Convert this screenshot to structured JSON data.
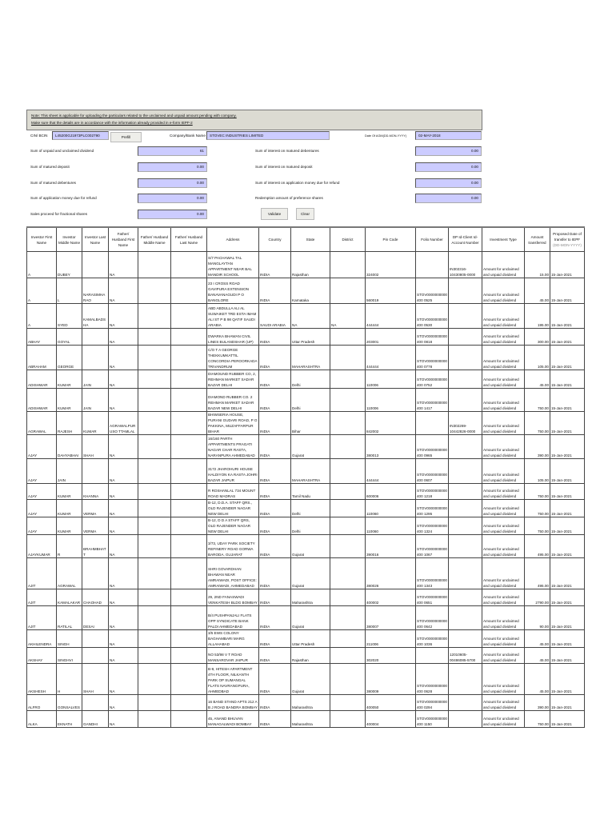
{
  "note": {
    "line1": "Note: This sheet is applicable for uploading the particulars related to the unclaimed and unpaid amount pending with company.",
    "line2": "Make sure that the details are in accordance with the information already provided in e-form IEPF-2"
  },
  "form": {
    "cin_label": "CIN/ BCIN",
    "cin_value": "L45200GJ1973PLC002790",
    "prefill_label": "Prefill",
    "company_label": "Company/Bank Name",
    "company_value": "STOVEC INDUSTRIES LIMITED",
    "agm_label": "Date Of AGM(DD-MON-YYYY)",
    "agm_value": "02-MAY-2018",
    "left_fields": [
      {
        "label": "Sum of unpaid and unclaimed dividend",
        "value": "61"
      },
      {
        "label": "Sum of matured deposit",
        "value": "0.00"
      },
      {
        "label": "Sum of matured debentures",
        "value": "0.00"
      },
      {
        "label": "Sum of application money due for refund",
        "value": "0.00"
      },
      {
        "label": "Sales proceed for fractional shares",
        "value": "0.00"
      }
    ],
    "right_fields": [
      {
        "label": "Sum of interest on matured debentures",
        "value": "0.00"
      },
      {
        "label": "Sum of interest on matured deposit",
        "value": "0.00"
      },
      {
        "label": "Sum of interest on application money due for refund",
        "value": "0.00"
      },
      {
        "label": "Redemption amount of preference shares",
        "value": "0.00"
      }
    ],
    "validate_label": "Validate",
    "clear_label": "Clear"
  },
  "table": {
    "headers": [
      "Investor First Name",
      "Investor Middle Name",
      "Investor Last Name",
      "Father/ Husband First Name",
      "Father/ Husband Middle Name",
      "Father/ Husband Last Name",
      "Address",
      "Country",
      "State",
      "District",
      "Pin Code",
      "Folio Number",
      "DP Id-Client Id-Account Number",
      "Investment Type",
      "Amount transferred",
      "Proposed Date of transfer to IEPF"
    ],
    "date_hint": "(DD-MON-YYYY)",
    "rows": [
      [
        "A",
        "DUBEY",
        "",
        "NA",
        "",
        "",
        "S/7 PACHAWAL TAL MANGLAYTAN APPARTMENT NEAR BAL MANDIR SCHOOL",
        "INDIA",
        "Rajasthan",
        "",
        "324002",
        "",
        "IN302316-10430805-0000",
        "Amount for unclaimed and unpaid dividend",
        "15.00",
        "15-Jan-2021"
      ],
      [
        "A",
        "L",
        "NARASIMHARAO",
        "NA",
        "",
        "",
        "23 I CROSS ROAD GAVIPURA EXTENSION BANAVANAGUDI P O BANGLORE",
        "INDIA",
        "Karnataka",
        "",
        "560019",
        "STOV0000000000400 0525",
        "",
        "Amount for unclaimed and unpaid dividend",
        "45.00",
        "15-Jan-2021"
      ],
      [
        "A",
        "SYED",
        "KAMALBADSHA",
        "NA",
        "",
        "",
        "ABD ABDULLA ALI AL SUWAIKET TRD ESTA IMAM ALI ST P B 98 QATIF SAUDI ARABIA",
        "SAUDI ARABIA",
        "NA",
        "NA",
        "444444",
        "STOV0000000000400 0530",
        "",
        "Amount for unclaimed and unpaid dividend",
        "195.00",
        "15-Jan-2021"
      ],
      [
        "ABHAY",
        "GOYAL",
        "",
        "NA",
        "",
        "",
        "DWARKA BHAWAN CIVIL LINES BULANDSHAR (UP)",
        "INDIA",
        "Uttar Pradesh",
        "",
        "203001",
        "STOV0000000000400 0818",
        "",
        "Amount for unclaimed and unpaid dividend",
        "300.00",
        "15-Jan-2021"
      ],
      [
        "ABRAHAM",
        "GEORGE",
        "",
        "NA",
        "",
        "",
        "C/O T A GEORGE THEKKUMKATTIL CONCORDIA PEROORKADA TRIVANDRUM",
        "INDIA",
        "MAHARASHTRA",
        "",
        "444444",
        "STOV0000000000400 0778",
        "",
        "Amount for unclaimed and unpaid dividend",
        "105.00",
        "15-Jan-2021"
      ],
      [
        "ADISHWAR",
        "KUMAR",
        "JAIN",
        "NA",
        "",
        "",
        "DIAMOUND RUBBER CO, 2, REHMAN MARKET SADAR BAZAR DELHI",
        "INDIA",
        "Delhi",
        "",
        "110006",
        "STOV0000000000400 0752",
        "",
        "Amount for unclaimed and unpaid dividend",
        "45.00",
        "15-Jan-2021"
      ],
      [
        "ADISHWAR",
        "KUMAR",
        "JAIN",
        "NA",
        "",
        "",
        "DIAMOND RUBBER CO. 2 REHMAN MARKET SADAR BAZAR NEW DELHI",
        "INDIA",
        "Delhi",
        "",
        "110006",
        "STOV0000000000400 1417",
        "",
        "Amount for unclaimed and unpaid dividend",
        "750.00",
        "15-Jan-2021"
      ],
      [
        "AGRAWAL",
        "RAJESH",
        "KUMAR",
        "AGRAWALPURUSO TTAMLAL",
        "",
        "",
        "BHIWSERIA HOUSE, PURANI GUDARI ROAD, P O PAKKINA, MUZAFFARPUR BIHAR",
        "INDIA",
        "Bihar",
        "",
        "842002",
        "",
        "IN302269-10442826-0000",
        "Amount for unclaimed and unpaid dividend",
        "750.00",
        "15-Jan-2021"
      ],
      [
        "AJAY",
        "DAHYABHAI",
        "SHAH",
        "NA",
        "",
        "",
        "16/160 PARTH APPARTMENTS PRAGATI NAGAR CHAR RASTA, NARANPURA AHMEDABAD",
        "INDIA",
        "Gujarat",
        "",
        "380013",
        "STOV0000000000400 0965",
        "",
        "Amount for unclaimed and unpaid dividend",
        "390.00",
        "15-Jan-2021"
      ],
      [
        "AJAY",
        "JAIN",
        "",
        "NA",
        "",
        "",
        "3172 JHAROHURI HOUSE HALDIYON KA RASTA JOHRI BAZAR JAIPUR",
        "INDIA",
        "MAHARASHTRA",
        "",
        "444444",
        "STOV0000000000400 0607",
        "",
        "Amount for unclaimed and unpaid dividend",
        "105.00",
        "15-Jan-2021"
      ],
      [
        "AJAY",
        "KUMAR",
        "KHANNA",
        "NA",
        "",
        "",
        "R ROSHANLAL 734 MOUNT ROAD MADRAS",
        "INDIA",
        "Tamil Nadu",
        "",
        "600006",
        "STOV0000000000400 1218",
        "",
        "Amount for unclaimed and unpaid dividend",
        "750.00",
        "15-Jan-2021"
      ],
      [
        "AJAY",
        "KUMAR",
        "VERMA",
        "NA",
        "",
        "",
        "B-12, D.D.A. STAFF QRS., OLD RAJENDER NAGAR NEW DELHI",
        "INDIA",
        "Delhi",
        "",
        "110060",
        "STOV0000000000400 1295",
        "",
        "Amount for unclaimed and unpaid dividend",
        "750.00",
        "15-Jan-2021"
      ],
      [
        "AJAY",
        "KUMAR",
        "VERMA",
        "NA",
        "",
        "",
        "B-12, D D A STAFF QRS, OLD RAJENDER NAGAR NEW DELHI",
        "INDIA",
        "Delhi",
        "",
        "110060",
        "STOV0000000000400 1324",
        "",
        "Amount for unclaimed and unpaid dividend",
        "750.00",
        "15-Jan-2021"
      ],
      [
        "AJAYKUMAR",
        "R",
        "BRAHMBHATT",
        "NA",
        "",
        "",
        "3/73, UDAY PARK SOCIETY REFINERY ROAD GORWA BARODA, GUJARAT",
        "INDIA",
        "Gujarat",
        "",
        "390016",
        "STOV0000000000400 1067",
        "",
        "Amount for unclaimed and unpaid dividend",
        "495.00",
        "15-Jan-2021"
      ],
      [
        "AJIT",
        "AGRAWAL",
        "",
        "NA",
        "",
        "",
        "SHRI GOVARDHAN BHAWAN NEAR AMRAIWADI, POST OFFICE: AMRAIWADI, AHMEDABAD",
        "INDIA",
        "Gujarat",
        "",
        "380026",
        "STOV0000000000400 1343",
        "",
        "Amount for unclaimed and unpaid dividend",
        "495.00",
        "15-Jan-2021"
      ],
      [
        "AJIT",
        "KAMALAKAR",
        "CHAOHAD",
        "NA",
        "",
        "",
        "29, 2ND FANASWADI VENKATESH BLDG BOMBAY",
        "INDIA",
        "Maharashtra",
        "",
        "400002",
        "STOV0000000000400 0651",
        "",
        "Amount for unclaimed and unpaid dividend",
        "2790.00",
        "15-Jan-2021"
      ],
      [
        "AJIT",
        "RATILAL",
        "DESAI",
        "NA",
        "",
        "",
        "B/4 PUSHPANJALI FLATS OPP SYNDICATE BANK PALDI AHMEDABAD",
        "INDIA",
        "Gujarat",
        "",
        "380007",
        "STOV0000000000400 0642",
        "",
        "Amount for unclaimed and unpaid dividend",
        "90.00",
        "15-Jan-2021"
      ],
      [
        "AKHILENDRA",
        "SINGH",
        "",
        "NA",
        "",
        "",
        "3/5 EWS COLONY BAGHAMBARI MARG ALLAHABAD",
        "INDIA",
        "Uttar Pradesh",
        "",
        "211006",
        "STOV0000000000400 1036",
        "",
        "Amount for unclaimed and unpaid dividend",
        "45.00",
        "15-Jan-2021"
      ],
      [
        "AKSHAY",
        "SINGHVI",
        "",
        "NA",
        "",
        "",
        "NO 53/98 V T ROAD MANSAROVAR JAIPUR",
        "INDIA",
        "Rajasthan",
        "",
        "302020",
        "",
        "12010605-00486085-5700",
        "Amount for unclaimed and unpaid dividend",
        "45.00",
        "15-Jan-2021"
      ],
      [
        "AKSHESH",
        "H",
        "SHAH",
        "NA",
        "",
        "",
        "B-9, HITESH APARTMENT 4TH FLOOR, NILKANTH PARK OP SUMANGAL FLATS NAVRANGPURA, AHMEDBAD",
        "INDIA",
        "Gujarat",
        "",
        "380009",
        "STOV0000000000400 0628",
        "",
        "Amount for unclaimed and unpaid dividend",
        "45.00",
        "15-Jan-2021"
      ],
      [
        "ALFRO",
        "GONSALVES",
        "",
        "NA",
        "",
        "",
        "16 BAND STAND APTS 212 A B J ROAD BANDRA BOMBAY",
        "INDIA",
        "Maharashtra",
        "",
        "400050",
        "STOV0000000000400 0294",
        "",
        "Amount for unclaimed and unpaid dividend",
        "390.00",
        "15-Jan-2021"
      ],
      [
        "ALKA",
        "EKNATH",
        "GANDHI",
        "NA",
        "",
        "",
        "45, ANAND BHUVAN MANAGALWADI BOMBAY",
        "INDIA",
        "Maharashtra",
        "",
        "400004",
        "STOV0000000000400 1150",
        "",
        "Amount for unclaimed and unpaid dividend",
        "750.00",
        "15-Jan-2021"
      ]
    ]
  },
  "colors": {
    "input_bg": "#ccccff",
    "note_bg": "#dcdbd2"
  }
}
